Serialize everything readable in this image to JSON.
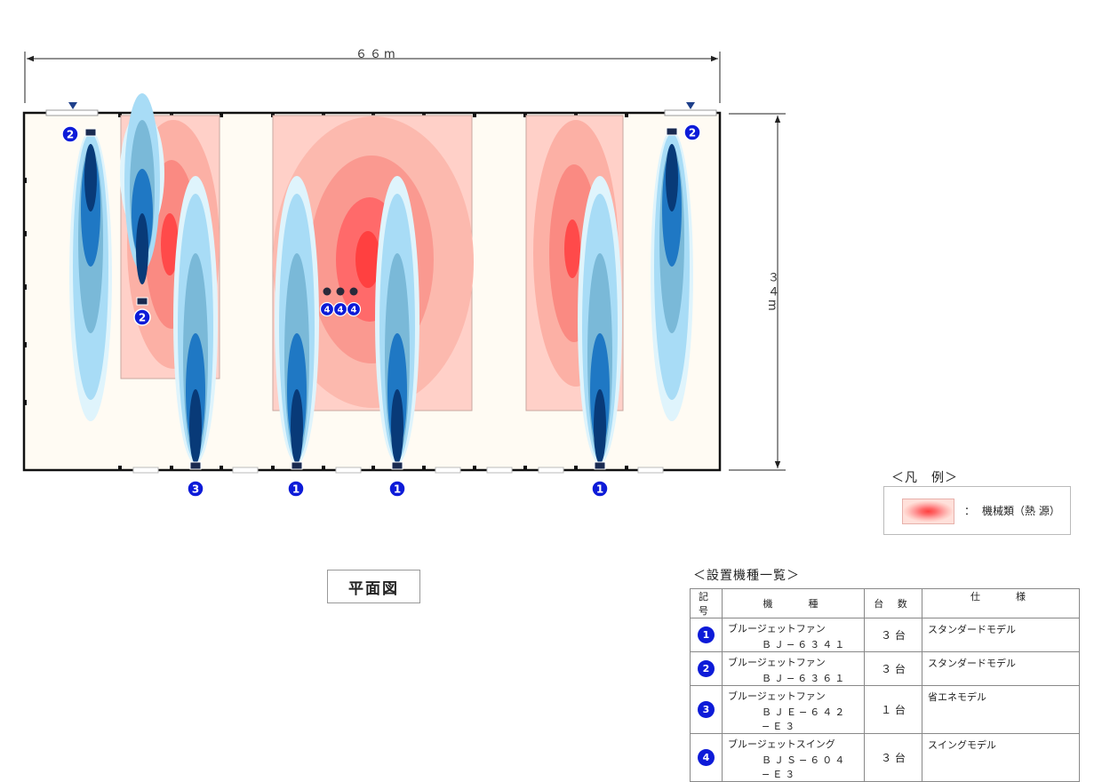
{
  "dimensions": {
    "width": "６６m",
    "height": "３４m"
  },
  "fan_badges": {
    "top_left": "2",
    "top_right": "2",
    "mid_left": "2",
    "bottom": [
      "3",
      "1",
      "1",
      "1"
    ],
    "center": [
      "4",
      "4",
      "4"
    ]
  },
  "legend": {
    "title": "＜凡　例＞",
    "colon": "：",
    "label": "機械類（熱 源）"
  },
  "plan_title": "平面図",
  "equipment": {
    "title": "＜設置機種一覧＞",
    "headers": [
      "記 号",
      "機　　種",
      "台 数",
      "仕　　様"
    ],
    "rows": [
      {
        "symbol": "1",
        "name": "ブルージェットファン",
        "model": "ＢＪ−６３４１",
        "count": "３ 台",
        "spec": "スタンダードモデル"
      },
      {
        "symbol": "2",
        "name": "ブルージェットファン",
        "model": "ＢＪ−６３６１",
        "count": "３ 台",
        "spec": "スタンダードモデル"
      },
      {
        "symbol": "3",
        "name": "ブルージェットファン",
        "model": "ＢＪＥ−６４２−Ｅ３",
        "count": "１ 台",
        "spec": "省エネモデル"
      },
      {
        "symbol": "4",
        "name": "ブルージェットスイング",
        "model": "ＢＪＳ−６０４−Ｅ３",
        "count": "３ 台",
        "spec": "スイングモデル"
      }
    ]
  },
  "colors": {
    "badge": "#0d1bd8",
    "heat_core": "#ff4040",
    "heat_outer": "#ffd0c8",
    "air_dark": "#083a78",
    "air_mid": "#1f78c4",
    "air_light": "#a8dcf6",
    "floor": "#fffbf3"
  }
}
